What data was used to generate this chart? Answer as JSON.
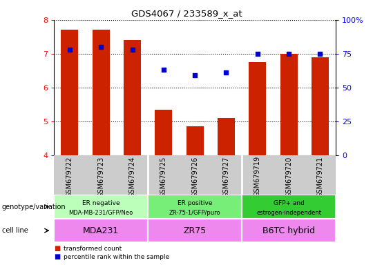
{
  "title": "GDS4067 / 233589_x_at",
  "samples": [
    "GSM679722",
    "GSM679723",
    "GSM679724",
    "GSM679725",
    "GSM679726",
    "GSM679727",
    "GSM679719",
    "GSM679720",
    "GSM679721"
  ],
  "bar_values": [
    7.7,
    7.7,
    7.4,
    5.35,
    4.85,
    5.1,
    6.75,
    7.0,
    6.9
  ],
  "percentile_values": [
    78,
    80,
    78,
    63,
    59,
    61,
    75,
    75,
    75
  ],
  "ylim": [
    4,
    8
  ],
  "y_left_ticks": [
    4,
    5,
    6,
    7,
    8
  ],
  "y_right_ticks": [
    0,
    25,
    50,
    75,
    100
  ],
  "y_right_labels": [
    "0",
    "25",
    "50",
    "75",
    "100%"
  ],
  "bar_color": "#cc2200",
  "dot_color": "#0000cc",
  "group_colors": [
    "#bbffbb",
    "#77ee77",
    "#33cc33"
  ],
  "cell_color": "#ee88ee",
  "tick_bg_color": "#cccccc",
  "groups": [
    {
      "label_top": "ER negative",
      "label_bot": "MDA-MB-231/GFP/Neo",
      "start": 0,
      "end": 3
    },
    {
      "label_top": "ER positive",
      "label_bot": "ZR-75-1/GFP/puro",
      "start": 3,
      "end": 6
    },
    {
      "label_top": "GFP+ and",
      "label_bot": "estrogen-independent",
      "start": 6,
      "end": 9
    }
  ],
  "cell_lines": [
    {
      "label": "MDA231",
      "start": 0,
      "end": 3
    },
    {
      "label": "ZR75",
      "start": 3,
      "end": 6
    },
    {
      "label": "B6TC hybrid",
      "start": 6,
      "end": 9
    }
  ],
  "genotype_label": "genotype/variation",
  "cellline_label": "cell line",
  "legend_bar": "transformed count",
  "legend_dot": "percentile rank within the sample"
}
